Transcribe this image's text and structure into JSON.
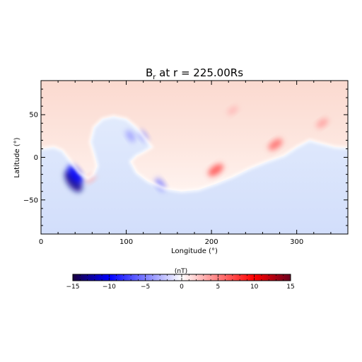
{
  "chart_data": {
    "type": "heatmap",
    "title": {
      "main": "B",
      "subscript": "r",
      "rest": " at r = 225.00Rs"
    },
    "xlabel": "Longitude (°)",
    "ylabel": "Latitude (°)",
    "xlim": [
      0,
      360
    ],
    "ylim": [
      -90,
      90
    ],
    "x_ticks": [
      {
        "value": 0,
        "label": "0"
      },
      {
        "value": 100,
        "label": "100"
      },
      {
        "value": 200,
        "label": "200"
      },
      {
        "value": 300,
        "label": "300"
      }
    ],
    "y_ticks": [
      {
        "value": 50,
        "label": "50"
      },
      {
        "value": 0,
        "label": "0"
      },
      {
        "value": -50,
        "label": "−50"
      }
    ],
    "colorbar": {
      "label": "(nT)",
      "range": [
        -15,
        15
      ],
      "ticks": [
        {
          "value": -15,
          "label": "−15"
        },
        {
          "value": -10,
          "label": "−10"
        },
        {
          "value": -5,
          "label": "−5"
        },
        {
          "value": 0,
          "label": "0"
        },
        {
          "value": 5,
          "label": "5"
        },
        {
          "value": 10,
          "label": "10"
        },
        {
          "value": 15,
          "label": "15"
        }
      ],
      "colors": [
        "#1a0040",
        "#0000ff",
        "#ffffff",
        "#ff0000",
        "#6b0020"
      ]
    },
    "neutral_line": [
      [
        0,
        10
      ],
      [
        15,
        12
      ],
      [
        25,
        8
      ],
      [
        35,
        -5
      ],
      [
        45,
        -18
      ],
      [
        55,
        -25
      ],
      [
        62,
        -20
      ],
      [
        66,
        -10
      ],
      [
        62,
        5
      ],
      [
        58,
        18
      ],
      [
        62,
        35
      ],
      [
        72,
        45
      ],
      [
        85,
        48
      ],
      [
        100,
        45
      ],
      [
        112,
        35
      ],
      [
        122,
        22
      ],
      [
        130,
        12
      ],
      [
        120,
        6
      ],
      [
        112,
        2
      ],
      [
        105,
        -5
      ],
      [
        112,
        -18
      ],
      [
        125,
        -28
      ],
      [
        145,
        -37
      ],
      [
        165,
        -40
      ],
      [
        185,
        -38
      ],
      [
        205,
        -31
      ],
      [
        225,
        -23
      ],
      [
        245,
        -13
      ],
      [
        265,
        -5
      ],
      [
        285,
        2
      ],
      [
        300,
        12
      ],
      [
        315,
        20
      ],
      [
        330,
        16
      ],
      [
        345,
        12
      ],
      [
        360,
        11
      ]
    ],
    "features": [
      {
        "lon": 38,
        "lat": -28,
        "value": -13
      },
      {
        "lon": 40,
        "lat": -20,
        "value": -10
      },
      {
        "lon": 58,
        "lat": -25,
        "value": 3
      },
      {
        "lon": 105,
        "lat": 25,
        "value": -4
      },
      {
        "lon": 120,
        "lat": 25,
        "value": -4
      },
      {
        "lon": 140,
        "lat": -32,
        "value": -5
      },
      {
        "lon": 205,
        "lat": -15,
        "value": 7
      },
      {
        "lon": 225,
        "lat": 55,
        "value": 3
      },
      {
        "lon": 275,
        "lat": 15,
        "value": 6
      },
      {
        "lon": 330,
        "lat": 40,
        "value": 4
      }
    ]
  }
}
